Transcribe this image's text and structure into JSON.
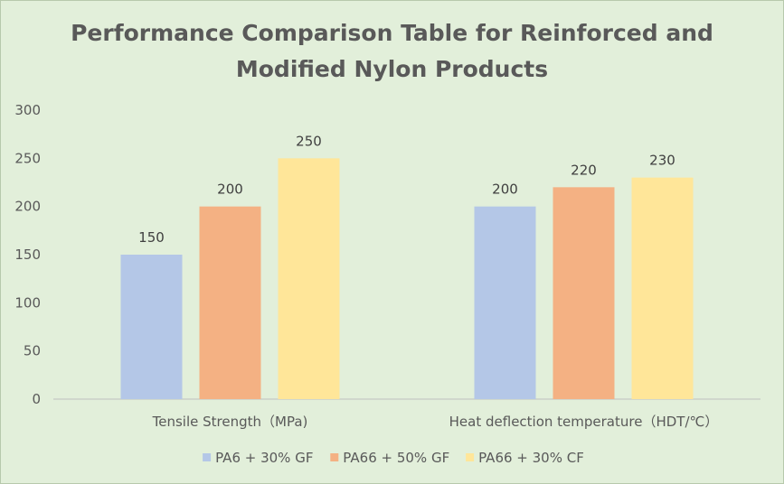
{
  "chart_data": {
    "type": "bar",
    "title_line1": "Performance Comparison Table for Reinforced and",
    "title_line2": "Modified Nylon Products",
    "categories": [
      "Tensile Strength（MPa)",
      "Heat deflection temperature（HDT/℃）"
    ],
    "series": [
      {
        "name": "PA6 + 30% GF",
        "values": [
          150,
          200
        ],
        "color": "#b4c7e7"
      },
      {
        "name": "PA66 + 50% GF",
        "values": [
          200,
          220
        ],
        "color": "#f4b183"
      },
      {
        "name": "PA66 + 30% CF",
        "values": [
          250,
          230
        ],
        "color": "#ffe699"
      }
    ],
    "ylim": [
      0,
      300
    ],
    "yticks": [
      0,
      50,
      100,
      150,
      200,
      250,
      300
    ],
    "grid": false,
    "legend": "bottom",
    "data_labels": true
  }
}
